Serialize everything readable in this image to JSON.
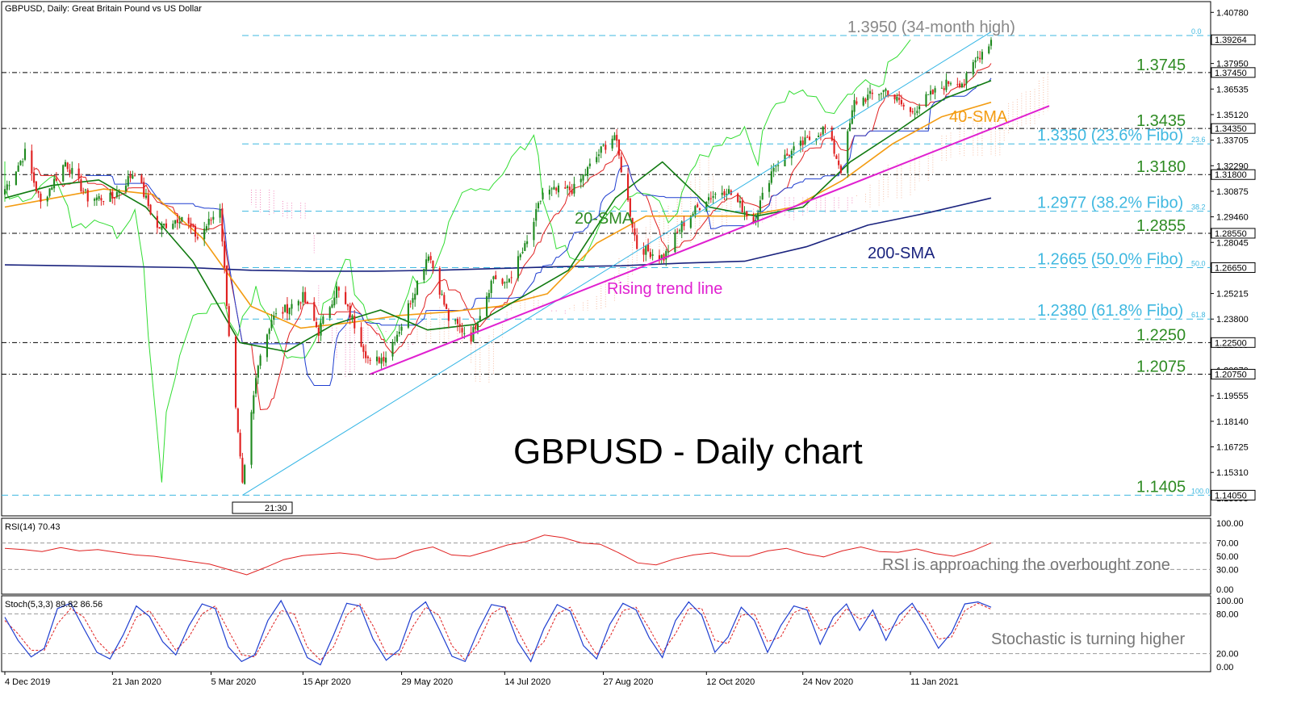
{
  "header": {
    "title": "GBPUSD, Daily:  Great Britain Pound vs US Dollar"
  },
  "colors": {
    "up_candle": "#1f8a1f",
    "down_candle": "#e02020",
    "sma20": "#117a11",
    "sma40": "#f39c12",
    "sma200": "#1a237e",
    "trend": "#e020d0",
    "channel": "#33b5e5",
    "fibo": "#3fb8e0",
    "support": "#000000",
    "chikou": "#33dd33",
    "tenkan": "#e02020",
    "kijun": "#1f3ed0",
    "cloud_bull": "#f5b89c",
    "cloud_bear": "#f07ab5",
    "rsi": "#e02020",
    "stoch_main": "#1f3ed0",
    "stoch_signal": "#e02020"
  },
  "chart_data": [
    {
      "type": "candlestick",
      "title": "GBPUSD - Daily chart",
      "ylim": [
        1.1295,
        1.4133
      ],
      "y_ticks": [
        "1.40780",
        "1.37950",
        "1.36535",
        "1.35120",
        "1.33705",
        "1.32290",
        "1.30875",
        "1.29460",
        "1.28045",
        "1.26630",
        "1.25215",
        "1.23800",
        "1.22385",
        "1.20970",
        "1.19555",
        "1.18140",
        "1.16725",
        "1.15310",
        "1.13895"
      ],
      "x_ticks": [
        "4 Dec 2019",
        "21 Jan 2020",
        "5 Mar 2020",
        "15 Apr 2020",
        "29 May 2020",
        "14 Jul 2020",
        "27 Aug 2020",
        "12 Oct 2020",
        "24 Nov 2020",
        "11 Jan 2021"
      ],
      "time_marker": "21:30",
      "ohlc_anchors": [
        {
          "date": "2019-12-04",
          "close": 1.31
        },
        {
          "date": "2019-12-13",
          "close": 1.33
        },
        {
          "date": "2019-12-20",
          "close": 1.302
        },
        {
          "date": "2019-12-31",
          "close": 1.325
        },
        {
          "date": "2020-01-10",
          "close": 1.305
        },
        {
          "date": "2020-01-21",
          "close": 1.305
        },
        {
          "date": "2020-01-31",
          "close": 1.32
        },
        {
          "date": "2020-02-10",
          "close": 1.288
        },
        {
          "date": "2020-02-21",
          "close": 1.295
        },
        {
          "date": "2020-02-28",
          "close": 1.283
        },
        {
          "date": "2020-03-09",
          "close": 1.3
        },
        {
          "date": "2020-03-13",
          "close": 1.23
        },
        {
          "date": "2020-03-19",
          "close": 1.145
        },
        {
          "date": "2020-03-26",
          "close": 1.215
        },
        {
          "date": "2020-04-01",
          "close": 1.238
        },
        {
          "date": "2020-04-09",
          "close": 1.245
        },
        {
          "date": "2020-04-15",
          "close": 1.25
        },
        {
          "date": "2020-04-22",
          "close": 1.231
        },
        {
          "date": "2020-04-30",
          "close": 1.255
        },
        {
          "date": "2020-05-07",
          "close": 1.238
        },
        {
          "date": "2020-05-15",
          "close": 1.213
        },
        {
          "date": "2020-05-22",
          "close": 1.218
        },
        {
          "date": "2020-05-29",
          "close": 1.235
        },
        {
          "date": "2020-06-10",
          "close": 1.275
        },
        {
          "date": "2020-06-19",
          "close": 1.238
        },
        {
          "date": "2020-06-29",
          "close": 1.228
        },
        {
          "date": "2020-07-09",
          "close": 1.262
        },
        {
          "date": "2020-07-14",
          "close": 1.256
        },
        {
          "date": "2020-07-24",
          "close": 1.28
        },
        {
          "date": "2020-07-31",
          "close": 1.308
        },
        {
          "date": "2020-08-14",
          "close": 1.31
        },
        {
          "date": "2020-08-27",
          "close": 1.333
        },
        {
          "date": "2020-09-01",
          "close": 1.34
        },
        {
          "date": "2020-09-11",
          "close": 1.278
        },
        {
          "date": "2020-09-23",
          "close": 1.272
        },
        {
          "date": "2020-10-01",
          "close": 1.29
        },
        {
          "date": "2020-10-12",
          "close": 1.305
        },
        {
          "date": "2020-10-21",
          "close": 1.31
        },
        {
          "date": "2020-11-02",
          "close": 1.292
        },
        {
          "date": "2020-11-11",
          "close": 1.323
        },
        {
          "date": "2020-11-24",
          "close": 1.335
        },
        {
          "date": "2020-12-04",
          "close": 1.344
        },
        {
          "date": "2020-12-11",
          "close": 1.321
        },
        {
          "date": "2020-12-17",
          "close": 1.358
        },
        {
          "date": "2020-12-31",
          "close": 1.365
        },
        {
          "date": "2021-01-11",
          "close": 1.352
        },
        {
          "date": "2021-01-18",
          "close": 1.36
        },
        {
          "date": "2021-01-29",
          "close": 1.37
        },
        {
          "date": "2021-02-04",
          "close": 1.369
        },
        {
          "date": "2021-02-10",
          "close": 1.383
        },
        {
          "date": "2021-02-16",
          "close": 1.3926
        }
      ],
      "sma20_anchors": [
        1.305,
        1.312,
        1.315,
        1.3,
        1.27,
        1.225,
        1.22,
        1.235,
        1.243,
        1.232,
        1.235,
        1.25,
        1.265,
        1.305,
        1.325,
        1.3,
        1.295,
        1.3,
        1.325,
        1.342,
        1.36,
        1.37
      ],
      "sma40_anchors": [
        1.3,
        1.305,
        1.31,
        1.307,
        1.283,
        1.245,
        1.233,
        1.236,
        1.24,
        1.242,
        1.245,
        1.252,
        1.28,
        1.295,
        1.295,
        1.295,
        1.3,
        1.315,
        1.335,
        1.35,
        1.358
      ],
      "sma200_anchors": [
        1.268,
        1.2675,
        1.267,
        1.2665,
        1.265,
        1.2645,
        1.2645,
        1.265,
        1.266,
        1.267,
        1.2675,
        1.269,
        1.27,
        1.278,
        1.29,
        1.297,
        1.305
      ],
      "levels": [
        {
          "label": "1.3745",
          "value": 1.3745,
          "kind": "support"
        },
        {
          "label": "1.3435",
          "value": 1.3435,
          "kind": "support"
        },
        {
          "label": "1.3180",
          "value": 1.318,
          "kind": "support"
        },
        {
          "label": "1.2855",
          "value": 1.2855,
          "kind": "support"
        },
        {
          "label": "1.2250",
          "value": 1.225,
          "kind": "support"
        },
        {
          "label": "1.2075",
          "value": 1.2075,
          "kind": "support"
        },
        {
          "label": "1.3950 (34-month high)",
          "value": 1.395,
          "kind": "fibo",
          "tag": "0.0"
        },
        {
          "label": "1.3350 (23.6% Fibo)",
          "value": 1.335,
          "kind": "fibo",
          "tag": "23.6"
        },
        {
          "label": "1.2977 (38.2% Fibo)",
          "value": 1.2977,
          "kind": "fibo",
          "tag": "38.2"
        },
        {
          "label": "1.2665 (50.0% Fibo)",
          "value": 1.2665,
          "kind": "fibo",
          "tag": "50.0"
        },
        {
          "label": "1.2380 (61.8% Fibo)",
          "value": 1.238,
          "kind": "fibo",
          "tag": "61.8"
        },
        {
          "label": "1.1405",
          "value": 1.1405,
          "kind": "fibo",
          "tag": "100.0"
        }
      ],
      "price_tags": [
        {
          "label": "1.39264",
          "value": 1.39264
        },
        {
          "label": "1.37450",
          "value": 1.3745
        },
        {
          "label": "1.34350",
          "value": 1.3435
        },
        {
          "label": "1.31800",
          "value": 1.318
        },
        {
          "label": "1.28550",
          "value": 1.2855
        },
        {
          "label": "1.26650",
          "value": 1.2665
        },
        {
          "label": "1.22500",
          "value": 1.225
        },
        {
          "label": "1.20750",
          "value": 1.2075
        },
        {
          "label": "1.14050",
          "value": 1.1405
        }
      ],
      "annotations": {
        "sma20": "20-SMA",
        "sma40": "40-SMA",
        "sma200": "200-SMA",
        "trend": "Rising trend line"
      }
    },
    {
      "type": "line",
      "title": "RSI(14) 70.43",
      "ylim": [
        0,
        100
      ],
      "y_ticks": [
        "100.00",
        "70.00",
        "50.00",
        "30.00",
        "0.00"
      ],
      "levels": [
        70,
        30
      ],
      "values": [
        62,
        60,
        57,
        63,
        58,
        60,
        56,
        52,
        50,
        46,
        42,
        38,
        30,
        22,
        33,
        45,
        51,
        53,
        55,
        52,
        45,
        47,
        58,
        64,
        52,
        50,
        58,
        67,
        72,
        82,
        78,
        70,
        68,
        55,
        40,
        37,
        46,
        52,
        55,
        50,
        50,
        58,
        62,
        54,
        49,
        58,
        64,
        57,
        56,
        61,
        54,
        50,
        58,
        70
      ],
      "annotation": "RSI is approaching the overbought zone"
    },
    {
      "type": "line",
      "title": "Stoch(5,3,3) 89.82 86.56",
      "ylim": [
        0,
        100
      ],
      "y_ticks": [
        "100.00",
        "80.00",
        "20.00",
        "0.00"
      ],
      "levels": [
        80,
        20
      ],
      "values": [
        75,
        40,
        15,
        28,
        88,
        96,
        58,
        22,
        12,
        48,
        92,
        76,
        38,
        18,
        62,
        95,
        88,
        30,
        8,
        18,
        70,
        100,
        60,
        14,
        3,
        48,
        96,
        92,
        42,
        10,
        26,
        82,
        98,
        58,
        16,
        8,
        55,
        94,
        90,
        38,
        8,
        58,
        94,
        84,
        32,
        12,
        64,
        96,
        86,
        44,
        14,
        70,
        98,
        78,
        22,
        45,
        90,
        70,
        22,
        62,
        92,
        86,
        34,
        75,
        95,
        55,
        86,
        40,
        78,
        96,
        64,
        28,
        52,
        95,
        98,
        90
      ],
      "signal_values": [
        70,
        50,
        25,
        25,
        65,
        88,
        75,
        40,
        20,
        32,
        75,
        85,
        55,
        25,
        45,
        80,
        92,
        55,
        18,
        15,
        50,
        85,
        80,
        30,
        10,
        30,
        78,
        95,
        62,
        20,
        18,
        60,
        90,
        78,
        32,
        10,
        36,
        80,
        92,
        55,
        18,
        38,
        80,
        90,
        50,
        18,
        45,
        85,
        90,
        58,
        22,
        50,
        88,
        88,
        40,
        35,
        78,
        80,
        38,
        45,
        82,
        90,
        55,
        62,
        88,
        72,
        78,
        55,
        65,
        90,
        78,
        42,
        45,
        85,
        96,
        87
      ],
      "annotation": "Stochastic is turning higher"
    }
  ]
}
